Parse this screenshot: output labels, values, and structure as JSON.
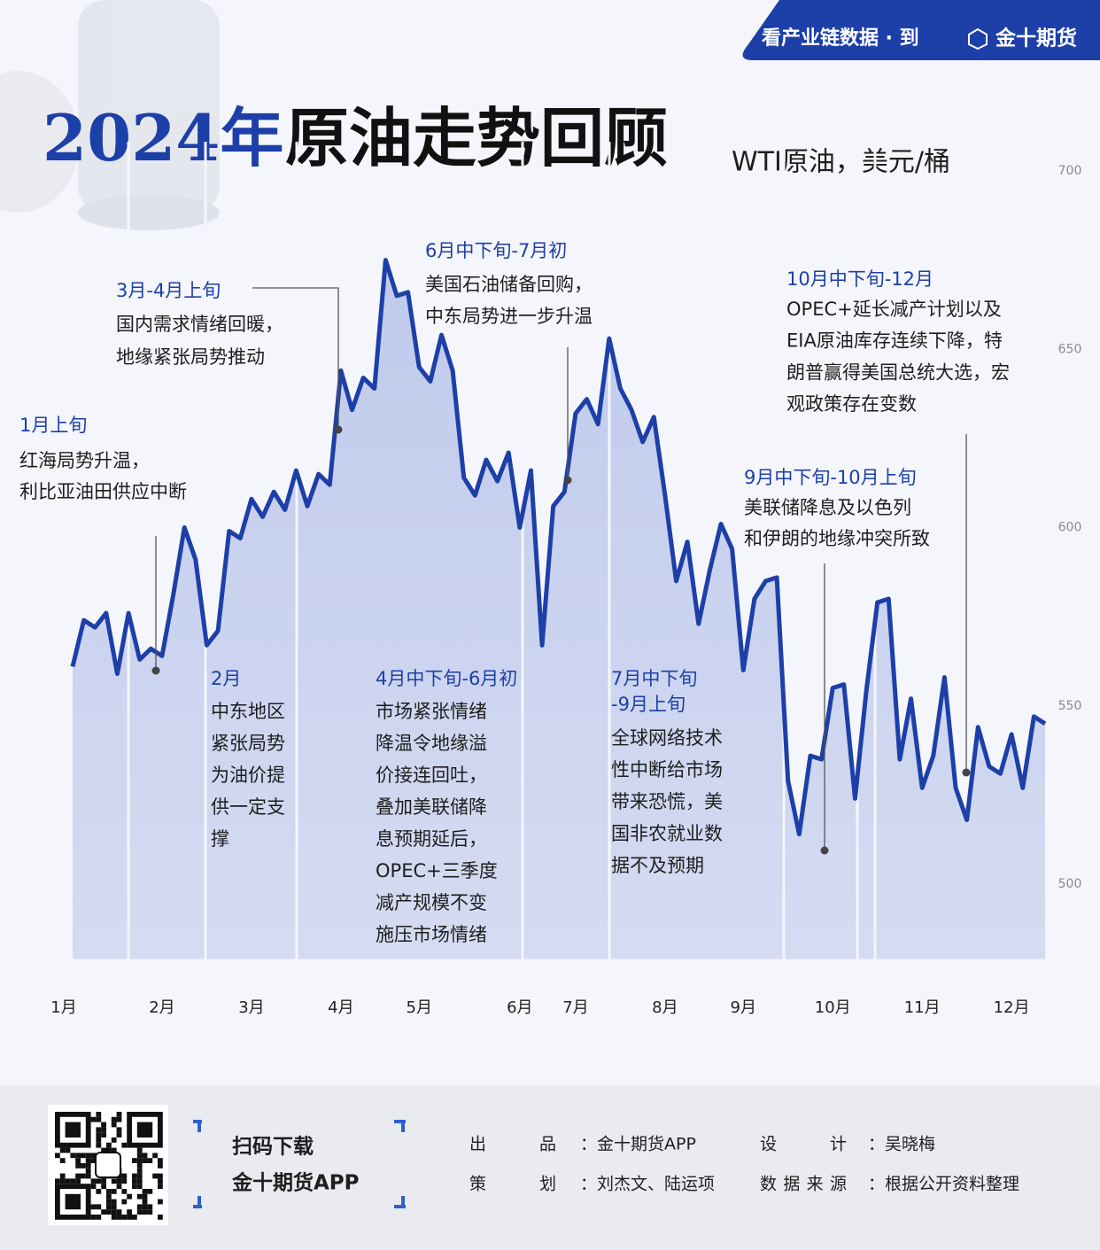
{
  "header": {
    "banner": "看产业链数据 · 到",
    "brand": "金十期货"
  },
  "chart_data": {
    "type": "line",
    "title_year": "2024年",
    "title": "原油走势回顾",
    "subtitle": "WTI原油，美元/桶",
    "categories": [
      "1月",
      null,
      null,
      null,
      null,
      null,
      null,
      null,
      "2月",
      null,
      null,
      null,
      null,
      null,
      null,
      null,
      "3月",
      null,
      null,
      null,
      null,
      null,
      null,
      null,
      "4月",
      null,
      null,
      null,
      null,
      null,
      null,
      "5月",
      null,
      null,
      null,
      null,
      null,
      null,
      null,
      null,
      "6月",
      null,
      null,
      null,
      null,
      "7月",
      null,
      null,
      null,
      null,
      null,
      null,
      null,
      "8月",
      null,
      null,
      null,
      null,
      null,
      null,
      "9月",
      null,
      null,
      null,
      null,
      null,
      null,
      null,
      "10月",
      null,
      null,
      null,
      null,
      null,
      null,
      null,
      "11月",
      null,
      null,
      null,
      null,
      null,
      null,
      null,
      "12月",
      null,
      null,
      null
    ],
    "values": [
      561,
      574,
      572,
      576,
      559,
      576,
      563,
      566,
      564,
      581,
      600,
      591,
      567,
      571,
      599,
      597,
      608,
      603,
      610,
      605,
      616,
      606,
      615,
      612,
      644,
      633,
      642,
      639,
      675,
      665,
      666,
      645,
      641,
      654,
      644,
      614,
      609,
      619,
      613,
      621,
      600,
      616,
      567,
      606,
      610,
      632,
      636,
      629,
      653,
      639,
      633,
      624,
      631,
      609,
      585,
      596,
      573,
      588,
      601,
      594,
      560,
      580,
      585,
      586,
      529,
      514,
      536,
      535,
      555,
      556,
      524,
      554,
      579,
      580,
      535,
      552,
      527,
      536,
      558,
      527,
      518,
      544,
      533,
      531,
      542,
      527,
      547,
      545
    ],
    "color": "#1d3fa8",
    "ylim": [
      479,
      700
    ],
    "yticks": [
      500,
      550,
      600,
      650,
      700
    ],
    "annotations": [
      {
        "title": [
          "1月上旬"
        ],
        "text": [
          "红海局势升温，",
          "利比亚油田供应中断"
        ]
      },
      {
        "title": [
          "3月-4月上旬"
        ],
        "text": [
          "国内需求情绪回暖，",
          "地缘紧张局势推动"
        ]
      },
      {
        "title": [
          "6月中下旬-7月初"
        ],
        "text": [
          "美国石油储备回购，",
          "中东局势进一步升温"
        ]
      },
      {
        "title": [
          "2月"
        ],
        "text": [
          "中东地区",
          "紧张局势",
          "为油价提",
          "供一定支",
          "撑"
        ]
      },
      {
        "title": [
          "4月中下旬-6月初"
        ],
        "text": [
          "市场紧张情绪",
          "降温令地缘溢",
          "价接连回吐，",
          "叠加美联储降",
          "息预期延后，",
          "OPEC+三季度",
          "减产规模不变",
          "施压市场情绪"
        ]
      },
      {
        "title": [
          "7月中下旬",
          "-9月上旬"
        ],
        "text": [
          "全球网络技术",
          "性中断给市场",
          "带来恐慌，美",
          "国非农就业数",
          "据不及预期"
        ]
      },
      {
        "title": [
          "10月中下旬-12月"
        ],
        "text": [
          "OPEC+延长减产计划以及",
          "EIA原油库存连续下降，特",
          "朗普赢得美国总统大选，宏",
          "观政策存在变数"
        ]
      },
      {
        "title": [
          "9月中下旬-10月上旬"
        ],
        "text": [
          "美联储降息及以色列",
          "和伊朗的地缘冲突所致"
        ]
      }
    ]
  },
  "footer": {
    "download": [
      "扫码下载",
      "金十期货APP"
    ],
    "credits": [
      {
        "label": "出品",
        "value": "：金十期货APP"
      },
      {
        "label": "设计",
        "value": "：吴晓梅"
      },
      {
        "label": "策划",
        "value": "：刘杰文、陆运项"
      },
      {
        "label": "数据来源",
        "value": "：根据公开资料整理"
      }
    ]
  }
}
